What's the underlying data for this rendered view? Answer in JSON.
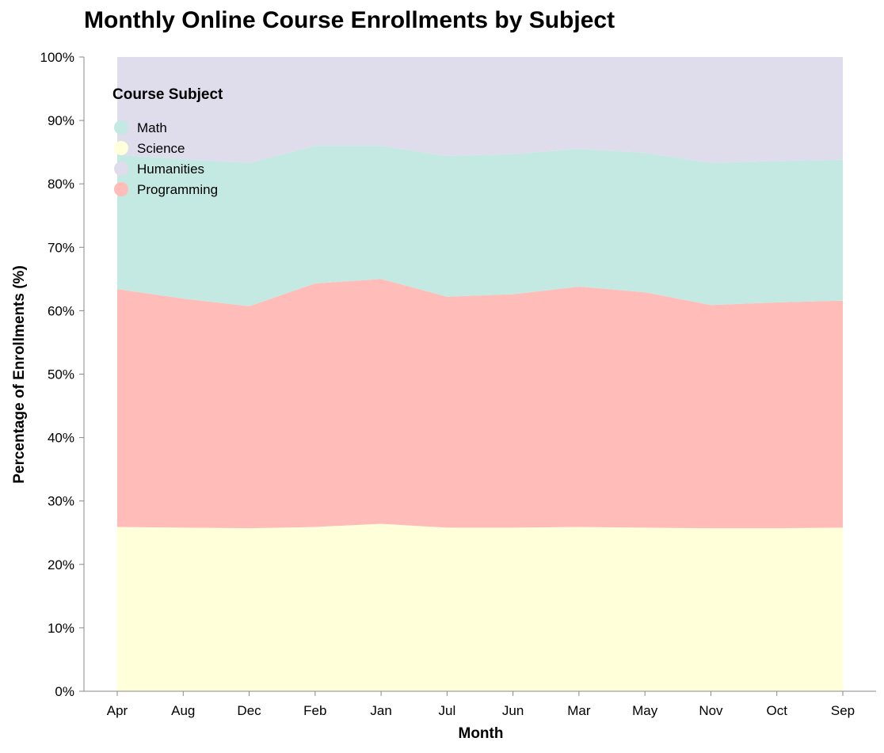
{
  "chart_data": {
    "type": "area",
    "stacked": "normalize",
    "title": "Monthly Online Course Enrollments by Subject",
    "xlabel": "Month",
    "ylabel": "Percentage of Enrollments (%)",
    "ylim": [
      0,
      100
    ],
    "y_ticks": [
      "0%",
      "10%",
      "20%",
      "30%",
      "40%",
      "50%",
      "60%",
      "70%",
      "80%",
      "90%",
      "100%"
    ],
    "categories": [
      "Apr",
      "Aug",
      "Dec",
      "Feb",
      "Jan",
      "Jul",
      "Jun",
      "Mar",
      "May",
      "Nov",
      "Oct",
      "Sep"
    ],
    "stack_order_bottom_to_top": [
      "Science",
      "Programming",
      "Math",
      "Humanities"
    ],
    "series": [
      {
        "name": "Science",
        "color": "#ffffd9",
        "values": [
          25.9,
          25.8,
          25.7,
          25.9,
          26.4,
          25.8,
          25.8,
          25.9,
          25.8,
          25.7,
          25.7,
          25.8
        ]
      },
      {
        "name": "Programming",
        "color": "#ffbcb8",
        "values": [
          37.5,
          36.1,
          35.0,
          38.4,
          38.6,
          36.4,
          36.8,
          37.9,
          37.1,
          35.2,
          35.6,
          35.8
        ]
      },
      {
        "name": "Math",
        "color": "#c4e9e2",
        "values": [
          21.2,
          22.0,
          22.6,
          21.7,
          21.0,
          22.2,
          22.1,
          21.7,
          22.0,
          22.4,
          22.3,
          22.2
        ]
      },
      {
        "name": "Humanities",
        "color": "#dfdcec",
        "values": [
          15.4,
          16.1,
          16.7,
          14.0,
          14.0,
          15.6,
          15.3,
          14.5,
          15.1,
          16.7,
          16.4,
          16.2
        ]
      }
    ],
    "legend": {
      "title": "Course Subject",
      "placement": "top-left",
      "entries": [
        "Math",
        "Science",
        "Humanities",
        "Programming"
      ]
    },
    "grid": false
  }
}
